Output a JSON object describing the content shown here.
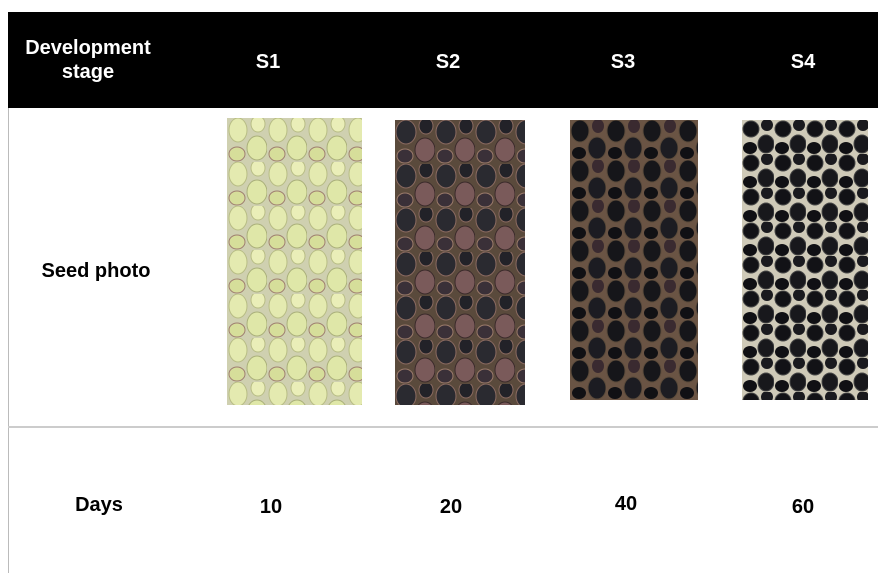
{
  "table": {
    "header": [
      "Development stage",
      "S1",
      "S2",
      "S3",
      "S4"
    ],
    "rows": [
      [
        "Seed photo"
      ],
      [
        "Days",
        10,
        20,
        40,
        60
      ]
    ]
  }
}
